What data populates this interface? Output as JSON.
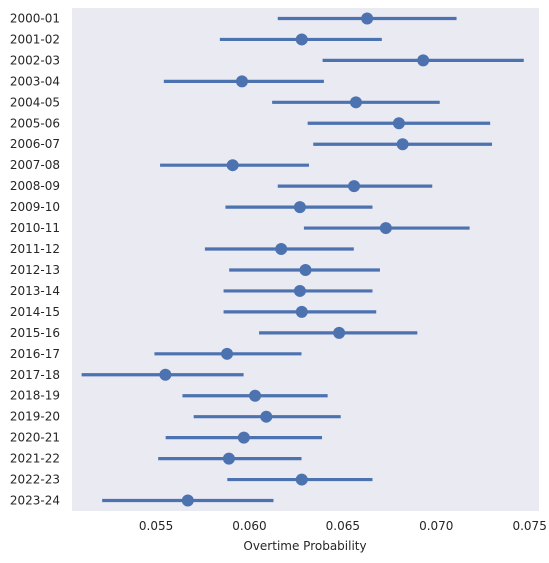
{
  "chart_data": {
    "type": "pointrange",
    "title": "",
    "xlabel": "Overtime Probability",
    "ylabel": "",
    "xlim": [
      0.0505,
      0.0755
    ],
    "xticks": [
      0.055,
      0.06,
      0.065,
      0.07,
      0.075
    ],
    "xtick_labels": [
      "0.055",
      "0.060",
      "0.065",
      "0.070",
      "0.075"
    ],
    "grid": false,
    "background": "#eaeaf2",
    "series_color": "#4c72b0",
    "categories": [
      "2000-01",
      "2001-02",
      "2002-03",
      "2003-04",
      "2004-05",
      "2005-06",
      "2006-07",
      "2007-08",
      "2008-09",
      "2009-10",
      "2010-11",
      "2011-12",
      "2012-13",
      "2013-14",
      "2014-15",
      "2015-16",
      "2016-17",
      "2017-18",
      "2018-19",
      "2019-20",
      "2020-21",
      "2021-22",
      "2022-23",
      "2023-24"
    ],
    "values": [
      0.0663,
      0.0628,
      0.0693,
      0.0596,
      0.0657,
      0.068,
      0.0682,
      0.0591,
      0.0656,
      0.0627,
      0.0673,
      0.0617,
      0.063,
      0.0627,
      0.0628,
      0.0648,
      0.0588,
      0.0555,
      0.0603,
      0.0609,
      0.0597,
      0.0589,
      0.0628,
      0.0567
    ],
    "lower": [
      0.0616,
      0.0585,
      0.064,
      0.0555,
      0.0613,
      0.0632,
      0.0635,
      0.0553,
      0.0616,
      0.0588,
      0.063,
      0.0577,
      0.059,
      0.0587,
      0.0587,
      0.0606,
      0.055,
      0.0511,
      0.0565,
      0.0571,
      0.0556,
      0.0552,
      0.0589,
      0.0522
    ],
    "upper": [
      0.071,
      0.067,
      0.0746,
      0.0639,
      0.0701,
      0.0728,
      0.0729,
      0.0631,
      0.0697,
      0.0665,
      0.0717,
      0.0655,
      0.0669,
      0.0665,
      0.0667,
      0.0689,
      0.0627,
      0.0596,
      0.0641,
      0.0648,
      0.0638,
      0.0627,
      0.0665,
      0.0612
    ]
  }
}
